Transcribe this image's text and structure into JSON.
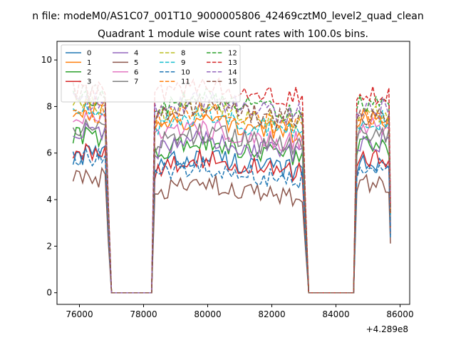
{
  "figure": {
    "suptitle": "n file: modeM0/AS1C07_001T10_9000005806_42469cztM0_level2_quad_clean",
    "title": "Quadrant 1 module wise count rates with 100.0s bins.",
    "x_offset_label": "+4.289e8"
  },
  "colors": [
    "#1f77b4",
    "#ff7f0e",
    "#2ca02c",
    "#d62728",
    "#9467bd",
    "#8c564b",
    "#e377c2",
    "#7f7f7f",
    "#bcbd22",
    "#17becf",
    "#1f77b4",
    "#ff7f0e",
    "#2ca02c",
    "#d62728",
    "#9467bd",
    "#8c564b"
  ],
  "chart_data": {
    "type": "line",
    "title": "Quadrant 1 module wise count rates with 100.0s bins.",
    "xlabel": "",
    "ylabel": "",
    "x_offset": 428900000,
    "xlim": [
      75300,
      86300
    ],
    "ylim": [
      -0.5,
      10.8
    ],
    "xticks": [
      76000,
      78000,
      80000,
      82000,
      84000,
      86000
    ],
    "xtick_labels": [
      "76000",
      "78000",
      "80000",
      "82000",
      "84000",
      "86000"
    ],
    "yticks": [
      0,
      2,
      4,
      6,
      8,
      10
    ],
    "ytick_labels": [
      "0",
      "2",
      "4",
      "6",
      "8",
      "10"
    ],
    "grid": false,
    "legend_position": "top-left",
    "legend_columns": 4,
    "segments": [
      {
        "start": 75800,
        "end": 76800
      },
      {
        "start": 78350,
        "end": 82950
      },
      {
        "start": 84650,
        "end": 85650
      }
    ],
    "series": [
      {
        "name": "0",
        "style": "solid",
        "levels": [
          5.9,
          5.4,
          5.5
        ]
      },
      {
        "name": "1",
        "style": "solid",
        "levels": [
          7.9,
          7.0,
          7.5
        ]
      },
      {
        "name": "2",
        "style": "solid",
        "levels": [
          6.7,
          6.0,
          6.3
        ]
      },
      {
        "name": "3",
        "style": "solid",
        "levels": [
          6.0,
          5.3,
          5.8
        ]
      },
      {
        "name": "4",
        "style": "solid",
        "levels": [
          6.9,
          6.1,
          6.5
        ]
      },
      {
        "name": "5",
        "style": "solid",
        "levels": [
          4.9,
          4.2,
          4.7
        ]
      },
      {
        "name": "6",
        "style": "solid",
        "levels": [
          7.4,
          6.6,
          7.1
        ]
      },
      {
        "name": "7",
        "style": "solid",
        "levels": [
          7.1,
          6.4,
          6.8
        ]
      },
      {
        "name": "8",
        "style": "dashed",
        "levels": [
          8.0,
          7.5,
          7.6
        ]
      },
      {
        "name": "9",
        "style": "dashed",
        "levels": [
          7.8,
          7.1,
          7.4
        ]
      },
      {
        "name": "10",
        "style": "dashed",
        "levels": [
          5.9,
          5.0,
          5.2
        ]
      },
      {
        "name": "11",
        "style": "dashed",
        "levels": [
          7.6,
          7.3,
          7.6
        ]
      },
      {
        "name": "12",
        "style": "dashed",
        "levels": [
          8.4,
          7.9,
          8.1
        ]
      },
      {
        "name": "13",
        "style": "dashed",
        "levels": [
          8.7,
          8.5,
          8.5
        ]
      },
      {
        "name": "14",
        "style": "dashed",
        "levels": [
          8.2,
          7.8,
          7.9
        ]
      },
      {
        "name": "15",
        "style": "dashed",
        "levels": [
          8.6,
          7.6,
          7.6
        ]
      }
    ]
  }
}
